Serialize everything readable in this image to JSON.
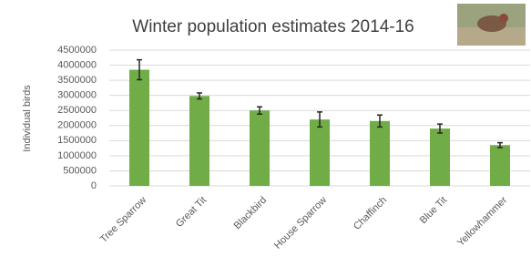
{
  "chart_data": {
    "type": "bar",
    "title": "Winter population estimates 2014-16",
    "y_label": "Individual birds",
    "categories": [
      "Tree Sparrow",
      "Great Tit",
      "Blackbird",
      "House Sparrow",
      "Chaffinch",
      "Blue Tit",
      "Yellowhammer"
    ],
    "values": [
      3850000,
      2980000,
      2500000,
      2200000,
      2150000,
      1900000,
      1350000
    ],
    "errors": [
      330000,
      100000,
      120000,
      250000,
      200000,
      150000,
      80000
    ],
    "color": "#70ad47",
    "ylim": [
      0,
      4500000
    ],
    "yticks": [
      0,
      500000,
      1000000,
      1500000,
      2000000,
      2500000,
      3000000,
      3500000,
      4000000,
      4500000
    ],
    "grid": true
  }
}
